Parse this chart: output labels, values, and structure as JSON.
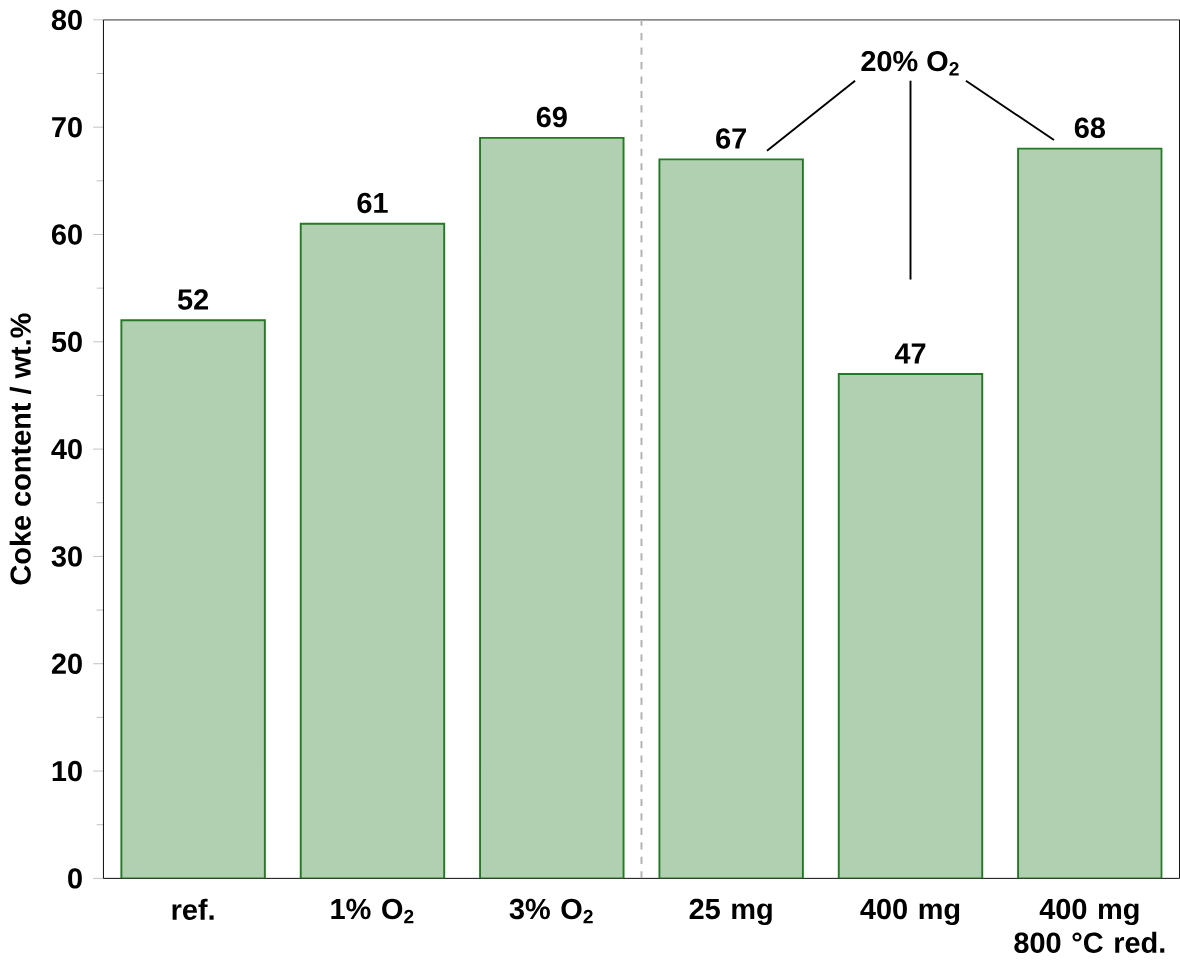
{
  "chart_data": {
    "type": "bar",
    "ylabel": "Coke content / wt.%",
    "categories": [
      "ref.",
      "1% O$_{2}$",
      "3% O$_{2}$",
      "25 mg",
      "400 mg",
      "400 mg 800 °C red."
    ],
    "values": [
      52,
      61,
      69,
      67,
      47,
      68
    ],
    "color": "#b1d0b1",
    "data_labels": true,
    "ylim": [
      0,
      80
    ],
    "yticks": [
      0,
      10,
      20,
      30,
      40,
      50,
      60,
      70,
      80
    ],
    "annotations": [
      "20% O$_{2}$"
    ]
  }
}
